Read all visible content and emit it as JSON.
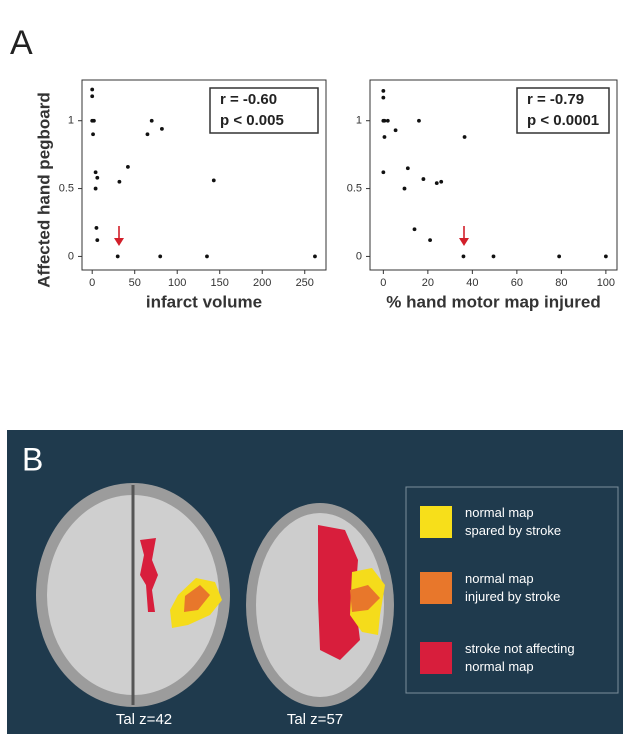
{
  "panel_a_label": "A",
  "chart_data": [
    {
      "type": "scatter",
      "xlabel": "infarct volume",
      "ylabel": "Affected hand pegboard",
      "annotations": [
        "r = -0.60",
        "p < 0.005"
      ],
      "x": [
        0,
        0,
        0,
        2,
        1,
        4,
        6,
        4,
        5,
        6,
        32,
        42,
        30,
        65,
        70,
        82,
        80,
        135,
        143,
        262
      ],
      "values": [
        1.23,
        1.18,
        1.0,
        1.0,
        0.9,
        0.62,
        0.58,
        0.5,
        0.21,
        0.12,
        0.55,
        0.66,
        0,
        0.9,
        1.0,
        0.94,
        0,
        0,
        0.56,
        0
      ],
      "color": "#111111",
      "xlim": [
        -12,
        275
      ],
      "ylim": [
        -0.1,
        1.3
      ],
      "xticks": [
        0,
        50,
        100,
        150,
        200,
        250
      ],
      "yticks": [
        0,
        0.5,
        1
      ]
    },
    {
      "type": "scatter",
      "xlabel": "% hand motor map injured",
      "annotations": [
        "r = -0.79",
        "p < 0.0001"
      ],
      "x": [
        0,
        0,
        0,
        0.5,
        2,
        0.5,
        5.5,
        0,
        16,
        11,
        9.5,
        18,
        24,
        26,
        14,
        21,
        36.5,
        36,
        49.5,
        79,
        100
      ],
      "values": [
        1.22,
        1.17,
        1.0,
        1.0,
        1.0,
        0.88,
        0.93,
        0.62,
        1.0,
        0.65,
        0.5,
        0.57,
        0.54,
        0.55,
        0.2,
        0.12,
        0.88,
        0,
        0,
        0,
        0
      ],
      "color": "#111111",
      "xlim": [
        -6,
        105
      ],
      "ylim": [
        -0.1,
        1.3
      ],
      "xticks": [
        0,
        20,
        40,
        60,
        80,
        100
      ],
      "yticks": [
        0,
        0.5,
        1
      ]
    }
  ],
  "panel_b": {
    "label": "B",
    "legend": [
      "normal map\nspared by stroke",
      "normal map\ninjured by stroke",
      "stroke not affecting\nnormal map"
    ],
    "captions": [
      "Tal z=42",
      "Tal z=57"
    ]
  }
}
